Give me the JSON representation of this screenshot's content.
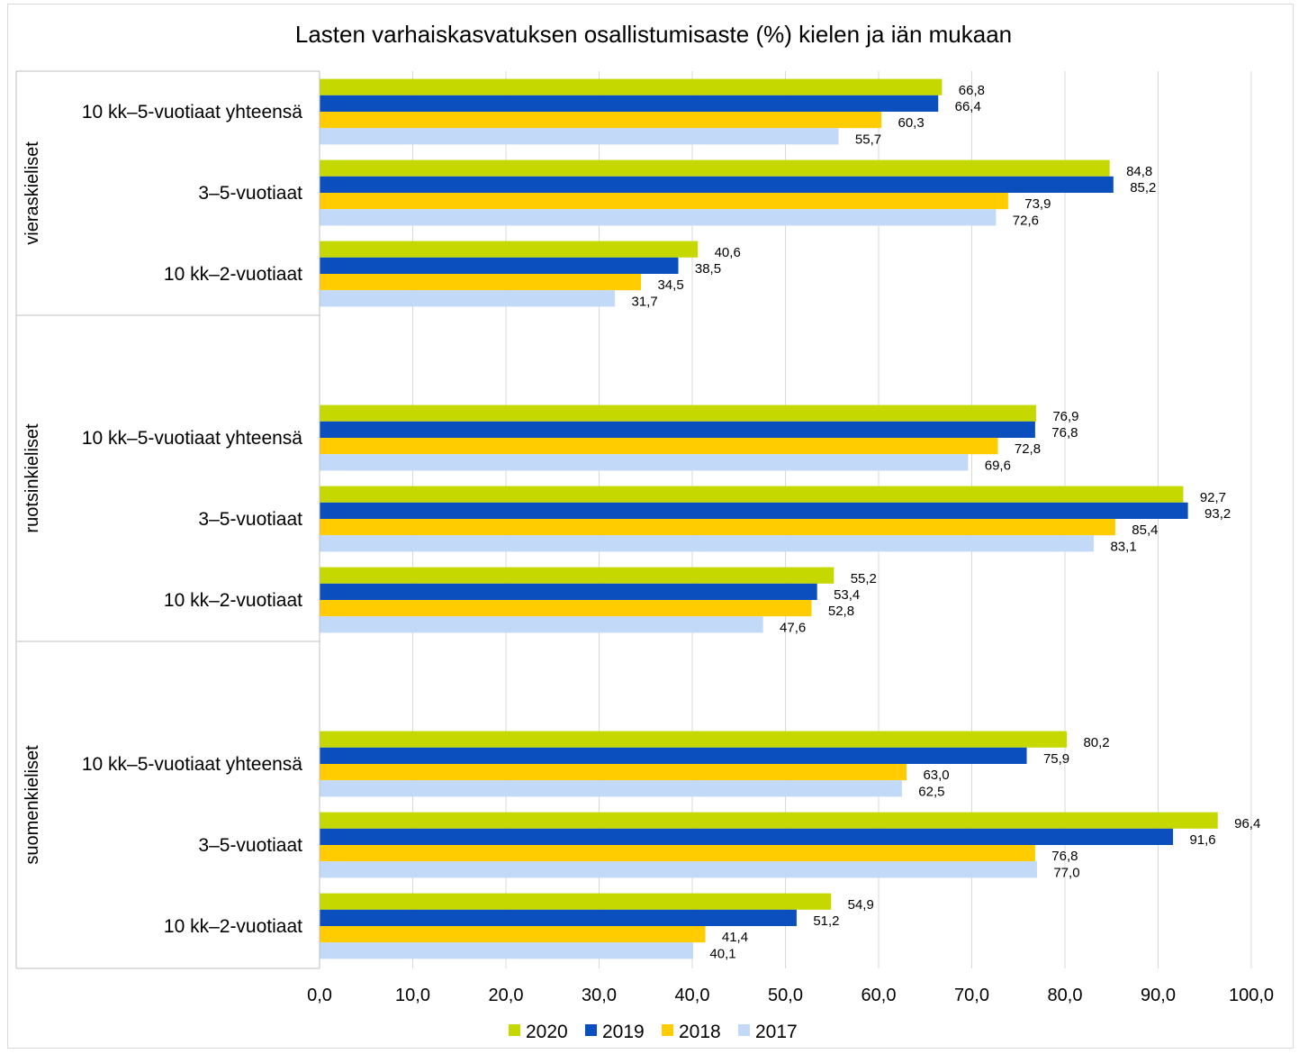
{
  "chart_data": {
    "type": "bar",
    "orientation": "horizontal",
    "title": "Lasten varhaiskasvatuksen osallistumisaste (%) kielen ja iän mukaan",
    "xlabel": "",
    "ylabel": "",
    "xlim": [
      0,
      100
    ],
    "x_ticks": [
      "0,0",
      "10,0",
      "20,0",
      "30,0",
      "40,0",
      "50,0",
      "60,0",
      "70,0",
      "80,0",
      "90,0",
      "100,0"
    ],
    "grid": true,
    "legend_position": "bottom",
    "groups": [
      {
        "name": "vieraskieliset",
        "categories": [
          "10 kk–5-vuotiaat yhteensä",
          "3–5-vuotiaat",
          "10 kk–2-vuotiaat"
        ]
      },
      {
        "name": "ruotsinkieliset",
        "categories": [
          "10 kk–5-vuotiaat yhteensä",
          "3–5-vuotiaat",
          "10 kk–2-vuotiaat"
        ]
      },
      {
        "name": "suomenkieliset",
        "categories": [
          "10 kk–5-vuotiaat yhteensä",
          "3–5-vuotiaat",
          "10 kk–2-vuotiaat"
        ]
      }
    ],
    "series": [
      {
        "name": "2020",
        "color": "#c5d900",
        "values": [
          66.8,
          84.8,
          40.6,
          76.9,
          92.7,
          55.2,
          80.2,
          96.4,
          54.9
        ],
        "labels": [
          "66,8",
          "84,8",
          "40,6",
          "76,9",
          "92,7",
          "55,2",
          "80,2",
          "96,4",
          "54,9"
        ]
      },
      {
        "name": "2019",
        "color": "#0a4fbd",
        "values": [
          66.4,
          85.2,
          38.5,
          76.8,
          93.2,
          53.4,
          75.9,
          91.6,
          51.2
        ],
        "labels": [
          "66,4",
          "85,2",
          "38,5",
          "76,8",
          "93,2",
          "53,4",
          "75,9",
          "91,6",
          "51,2"
        ]
      },
      {
        "name": "2018",
        "color": "#ffcc00",
        "values": [
          60.3,
          73.9,
          34.5,
          72.8,
          85.4,
          52.8,
          63.0,
          76.8,
          41.4
        ],
        "labels": [
          "60,3",
          "73,9",
          "34,5",
          "72,8",
          "85,4",
          "52,8",
          "63,0",
          "76,8",
          "41,4"
        ]
      },
      {
        "name": "2017",
        "color": "#c2daf7",
        "values": [
          55.7,
          72.6,
          31.7,
          69.6,
          83.1,
          47.6,
          62.5,
          77.0,
          40.1
        ],
        "labels": [
          "55,7",
          "72,6",
          "31,7",
          "69,6",
          "83,1",
          "47,6",
          "62,5",
          "77,0",
          "40,1"
        ]
      }
    ]
  }
}
